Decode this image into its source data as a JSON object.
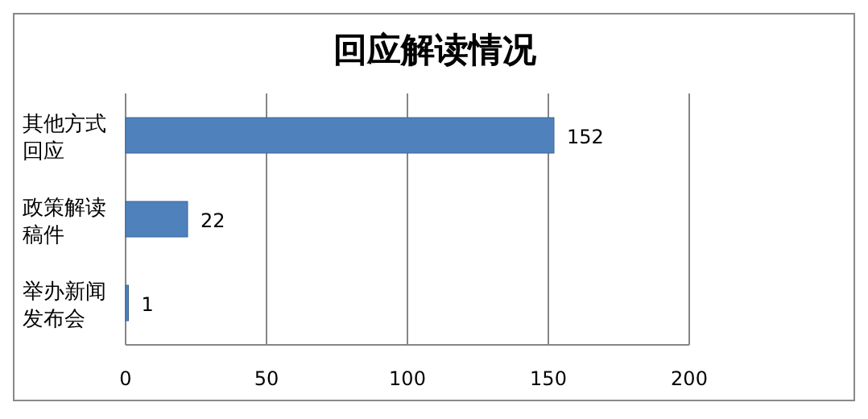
{
  "chart_data": {
    "type": "bar",
    "orientation": "horizontal",
    "title": "回应解读情况",
    "categories": [
      "其他方式回应",
      "政策解读稿件",
      "举办新闻发布会"
    ],
    "values": [
      152,
      22,
      1
    ],
    "color": "#4f81bd",
    "xlim": [
      0,
      200
    ],
    "xticks": [
      0,
      50,
      100,
      150,
      200
    ],
    "grid": "x",
    "data_labels": true
  }
}
